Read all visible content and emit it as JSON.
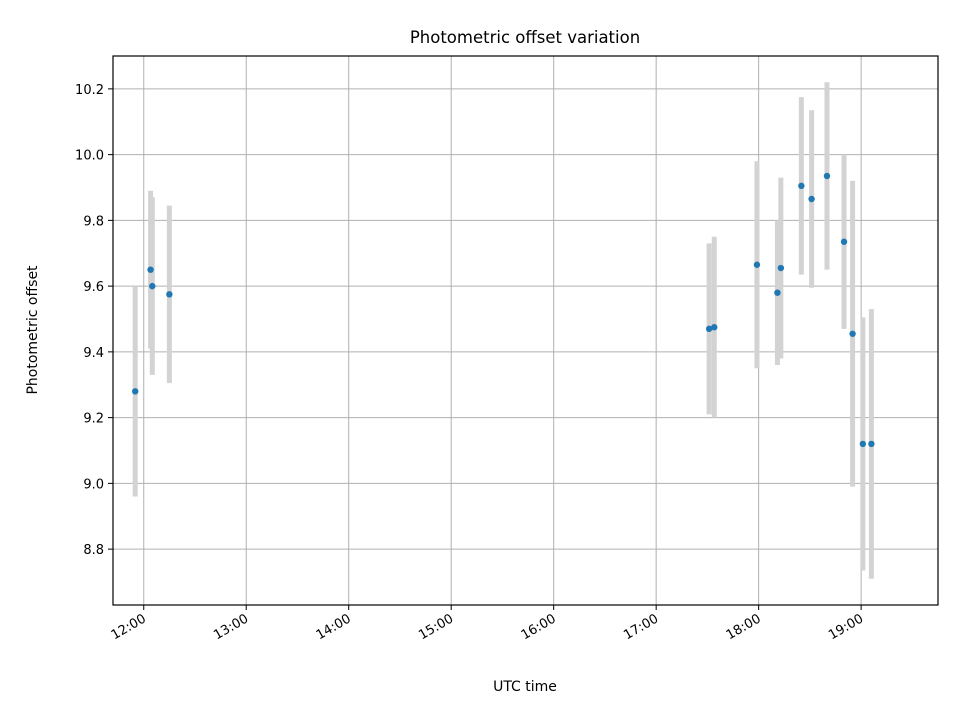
{
  "chart_data": {
    "type": "scatter",
    "title": "Photometric offset variation",
    "xlabel": "UTC time",
    "ylabel": "Photometric offset",
    "xlim": [
      "11:42",
      "19:45"
    ],
    "ylim": [
      8.63,
      10.3
    ],
    "x_ticks": [
      "12:00",
      "13:00",
      "14:00",
      "15:00",
      "16:00",
      "17:00",
      "18:00",
      "19:00"
    ],
    "y_ticks": [
      "8.8",
      "9.0",
      "9.2",
      "9.4",
      "9.6",
      "9.8",
      "10.0",
      "10.2"
    ],
    "grid": true,
    "legend": "none",
    "points": [
      {
        "x": "11:55",
        "y": 9.28,
        "err": 0.32
      },
      {
        "x": "12:04",
        "y": 9.65,
        "err": 0.24
      },
      {
        "x": "12:05",
        "y": 9.6,
        "err": 0.27
      },
      {
        "x": "12:15",
        "y": 9.575,
        "err": 0.27
      },
      {
        "x": "17:31",
        "y": 9.47,
        "err": 0.26
      },
      {
        "x": "17:34",
        "y": 9.475,
        "err": 0.275
      },
      {
        "x": "17:59",
        "y": 9.665,
        "err": 0.315
      },
      {
        "x": "18:11",
        "y": 9.58,
        "err": 0.22
      },
      {
        "x": "18:13",
        "y": 9.655,
        "err": 0.275
      },
      {
        "x": "18:25",
        "y": 9.905,
        "err": 0.27
      },
      {
        "x": "18:31",
        "y": 9.865,
        "err": 0.27
      },
      {
        "x": "18:40",
        "y": 9.935,
        "err": 0.285
      },
      {
        "x": "18:50",
        "y": 9.735,
        "err": 0.265
      },
      {
        "x": "18:55",
        "y": 9.455,
        "err": 0.465
      },
      {
        "x": "19:01",
        "y": 9.12,
        "err": 0.385
      },
      {
        "x": "19:06",
        "y": 9.12,
        "err": 0.41
      }
    ],
    "colors": {
      "marker": "#1f77b4",
      "errorbar": "#d3d3d3",
      "grid": "#b0b0b0",
      "axes": "#000000"
    }
  }
}
